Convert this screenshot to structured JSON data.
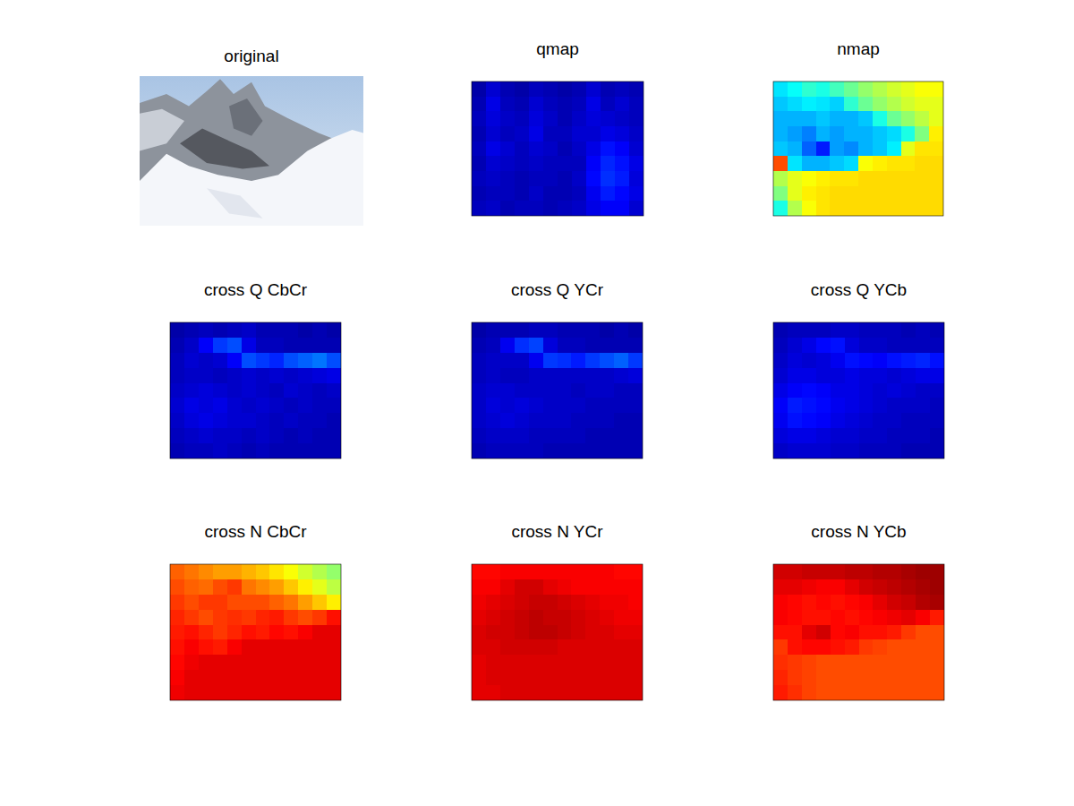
{
  "chart_data": [
    {
      "type": "image",
      "title": "original"
    },
    {
      "type": "heatmap",
      "title": "qmap",
      "color": "jet",
      "zlim": [
        0,
        1
      ],
      "tick_labels": false,
      "cells": [
        [
          0.04,
          0.08,
          0.05,
          0.04,
          0.06,
          0.05,
          0.04,
          0.05,
          0.08,
          0.05,
          0.06,
          0.05
        ],
        [
          0.05,
          0.1,
          0.06,
          0.05,
          0.08,
          0.06,
          0.05,
          0.06,
          0.1,
          0.06,
          0.08,
          0.06
        ],
        [
          0.06,
          0.09,
          0.07,
          0.06,
          0.09,
          0.07,
          0.05,
          0.07,
          0.09,
          0.08,
          0.07,
          0.06
        ],
        [
          0.05,
          0.08,
          0.06,
          0.07,
          0.1,
          0.06,
          0.06,
          0.08,
          0.08,
          0.1,
          0.09,
          0.07
        ],
        [
          0.06,
          0.1,
          0.08,
          0.06,
          0.08,
          0.07,
          0.05,
          0.07,
          0.1,
          0.14,
          0.12,
          0.08
        ],
        [
          0.05,
          0.08,
          0.07,
          0.06,
          0.07,
          0.06,
          0.06,
          0.06,
          0.12,
          0.16,
          0.14,
          0.1
        ],
        [
          0.06,
          0.07,
          0.06,
          0.05,
          0.06,
          0.06,
          0.05,
          0.07,
          0.13,
          0.17,
          0.15,
          0.09
        ],
        [
          0.05,
          0.06,
          0.06,
          0.05,
          0.07,
          0.05,
          0.05,
          0.06,
          0.11,
          0.15,
          0.13,
          0.1
        ],
        [
          0.06,
          0.07,
          0.05,
          0.06,
          0.06,
          0.05,
          0.06,
          0.07,
          0.1,
          0.12,
          0.12,
          0.08
        ]
      ]
    },
    {
      "type": "heatmap",
      "title": "nmap",
      "color": "jet",
      "zlim": [
        0,
        1
      ],
      "tick_labels": false,
      "cells": [
        [
          0.35,
          0.38,
          0.42,
          0.4,
          0.44,
          0.48,
          0.52,
          0.55,
          0.58,
          0.6,
          0.62,
          0.62
        ],
        [
          0.32,
          0.34,
          0.36,
          0.35,
          0.33,
          0.42,
          0.48,
          0.52,
          0.55,
          0.58,
          0.6,
          0.6
        ],
        [
          0.3,
          0.3,
          0.3,
          0.32,
          0.3,
          0.3,
          0.32,
          0.4,
          0.48,
          0.52,
          0.56,
          0.6
        ],
        [
          0.3,
          0.28,
          0.25,
          0.3,
          0.28,
          0.3,
          0.3,
          0.32,
          0.34,
          0.4,
          0.5,
          0.64
        ],
        [
          0.32,
          0.3,
          0.22,
          0.15,
          0.28,
          0.26,
          0.3,
          0.32,
          0.36,
          0.6,
          0.65,
          0.65
        ],
        [
          0.8,
          0.35,
          0.3,
          0.3,
          0.32,
          0.34,
          0.62,
          0.64,
          0.65,
          0.65,
          0.66,
          0.66
        ],
        [
          0.55,
          0.6,
          0.62,
          0.64,
          0.65,
          0.65,
          0.66,
          0.66,
          0.66,
          0.66,
          0.66,
          0.66
        ],
        [
          0.5,
          0.6,
          0.64,
          0.65,
          0.66,
          0.66,
          0.66,
          0.66,
          0.66,
          0.66,
          0.66,
          0.66
        ],
        [
          0.4,
          0.55,
          0.62,
          0.65,
          0.66,
          0.66,
          0.66,
          0.66,
          0.66,
          0.66,
          0.66,
          0.66
        ]
      ]
    },
    {
      "type": "heatmap",
      "title": "cross Q CbCr",
      "color": "jet",
      "zlim": [
        0,
        1
      ],
      "tick_labels": false,
      "cells": [
        [
          0.04,
          0.05,
          0.06,
          0.05,
          0.06,
          0.07,
          0.05,
          0.05,
          0.05,
          0.04,
          0.05,
          0.04
        ],
        [
          0.05,
          0.07,
          0.12,
          0.18,
          0.2,
          0.1,
          0.06,
          0.06,
          0.05,
          0.05,
          0.05,
          0.05
        ],
        [
          0.06,
          0.08,
          0.07,
          0.08,
          0.12,
          0.2,
          0.18,
          0.16,
          0.2,
          0.22,
          0.24,
          0.2
        ],
        [
          0.06,
          0.07,
          0.07,
          0.06,
          0.07,
          0.08,
          0.07,
          0.08,
          0.07,
          0.08,
          0.09,
          0.1
        ],
        [
          0.07,
          0.08,
          0.09,
          0.08,
          0.07,
          0.08,
          0.07,
          0.06,
          0.08,
          0.07,
          0.06,
          0.07
        ],
        [
          0.08,
          0.1,
          0.09,
          0.1,
          0.08,
          0.07,
          0.08,
          0.07,
          0.06,
          0.07,
          0.06,
          0.06
        ],
        [
          0.07,
          0.09,
          0.1,
          0.09,
          0.08,
          0.08,
          0.07,
          0.06,
          0.07,
          0.06,
          0.06,
          0.05
        ],
        [
          0.06,
          0.07,
          0.08,
          0.07,
          0.07,
          0.06,
          0.07,
          0.06,
          0.05,
          0.06,
          0.05,
          0.05
        ],
        [
          0.05,
          0.06,
          0.06,
          0.07,
          0.06,
          0.05,
          0.06,
          0.05,
          0.05,
          0.05,
          0.05,
          0.05
        ]
      ]
    },
    {
      "type": "heatmap",
      "title": "cross Q YCr",
      "color": "jet",
      "zlim": [
        0,
        1
      ],
      "tick_labels": false,
      "cells": [
        [
          0.04,
          0.05,
          0.05,
          0.05,
          0.06,
          0.06,
          0.05,
          0.05,
          0.05,
          0.04,
          0.05,
          0.04
        ],
        [
          0.05,
          0.06,
          0.11,
          0.17,
          0.19,
          0.09,
          0.06,
          0.06,
          0.05,
          0.05,
          0.05,
          0.05
        ],
        [
          0.06,
          0.07,
          0.07,
          0.07,
          0.11,
          0.18,
          0.17,
          0.15,
          0.18,
          0.2,
          0.22,
          0.18
        ],
        [
          0.06,
          0.07,
          0.06,
          0.06,
          0.07,
          0.07,
          0.07,
          0.07,
          0.07,
          0.07,
          0.08,
          0.09
        ],
        [
          0.07,
          0.08,
          0.08,
          0.07,
          0.07,
          0.07,
          0.07,
          0.06,
          0.07,
          0.07,
          0.06,
          0.06
        ],
        [
          0.07,
          0.09,
          0.08,
          0.09,
          0.08,
          0.07,
          0.07,
          0.07,
          0.06,
          0.06,
          0.06,
          0.06
        ],
        [
          0.07,
          0.08,
          0.09,
          0.08,
          0.07,
          0.07,
          0.07,
          0.06,
          0.06,
          0.06,
          0.05,
          0.05
        ],
        [
          0.06,
          0.07,
          0.07,
          0.07,
          0.06,
          0.06,
          0.06,
          0.06,
          0.05,
          0.05,
          0.05,
          0.05
        ],
        [
          0.05,
          0.06,
          0.06,
          0.06,
          0.06,
          0.05,
          0.05,
          0.05,
          0.05,
          0.05,
          0.05,
          0.05
        ]
      ]
    },
    {
      "type": "heatmap",
      "title": "cross Q YCb",
      "color": "jet",
      "zlim": [
        0,
        1
      ],
      "tick_labels": false,
      "cells": [
        [
          0.05,
          0.06,
          0.06,
          0.06,
          0.07,
          0.07,
          0.06,
          0.06,
          0.06,
          0.05,
          0.06,
          0.05
        ],
        [
          0.06,
          0.08,
          0.1,
          0.13,
          0.14,
          0.09,
          0.07,
          0.07,
          0.06,
          0.06,
          0.06,
          0.06
        ],
        [
          0.07,
          0.09,
          0.08,
          0.09,
          0.11,
          0.14,
          0.13,
          0.12,
          0.14,
          0.15,
          0.16,
          0.14
        ],
        [
          0.08,
          0.1,
          0.1,
          0.09,
          0.09,
          0.1,
          0.09,
          0.09,
          0.08,
          0.09,
          0.1,
          0.1
        ],
        [
          0.1,
          0.12,
          0.13,
          0.12,
          0.1,
          0.1,
          0.09,
          0.08,
          0.09,
          0.08,
          0.07,
          0.07
        ],
        [
          0.12,
          0.15,
          0.14,
          0.13,
          0.11,
          0.1,
          0.09,
          0.08,
          0.07,
          0.07,
          0.07,
          0.06
        ],
        [
          0.11,
          0.14,
          0.13,
          0.12,
          0.1,
          0.09,
          0.08,
          0.07,
          0.07,
          0.06,
          0.06,
          0.06
        ],
        [
          0.09,
          0.1,
          0.1,
          0.09,
          0.08,
          0.08,
          0.07,
          0.07,
          0.06,
          0.06,
          0.06,
          0.05
        ],
        [
          0.07,
          0.08,
          0.08,
          0.08,
          0.07,
          0.07,
          0.06,
          0.06,
          0.06,
          0.05,
          0.05,
          0.05
        ]
      ]
    },
    {
      "type": "heatmap",
      "title": "cross N CbCr",
      "color": "jet",
      "zlim": [
        0,
        1
      ],
      "tick_labels": false,
      "cells": [
        [
          0.78,
          0.76,
          0.74,
          0.72,
          0.72,
          0.7,
          0.68,
          0.65,
          0.62,
          0.58,
          0.55,
          0.52
        ],
        [
          0.8,
          0.78,
          0.77,
          0.8,
          0.82,
          0.76,
          0.74,
          0.72,
          0.68,
          0.64,
          0.6,
          0.56
        ],
        [
          0.82,
          0.8,
          0.82,
          0.82,
          0.8,
          0.8,
          0.8,
          0.78,
          0.76,
          0.72,
          0.68,
          0.64
        ],
        [
          0.84,
          0.82,
          0.8,
          0.82,
          0.83,
          0.82,
          0.84,
          0.85,
          0.82,
          0.8,
          0.82,
          0.86
        ],
        [
          0.85,
          0.86,
          0.84,
          0.82,
          0.84,
          0.86,
          0.85,
          0.87,
          0.86,
          0.88,
          0.9,
          0.9
        ],
        [
          0.86,
          0.88,
          0.86,
          0.85,
          0.88,
          0.9,
          0.9,
          0.9,
          0.9,
          0.9,
          0.9,
          0.9
        ],
        [
          0.87,
          0.89,
          0.9,
          0.9,
          0.9,
          0.9,
          0.9,
          0.9,
          0.9,
          0.9,
          0.9,
          0.9
        ],
        [
          0.88,
          0.9,
          0.9,
          0.9,
          0.9,
          0.9,
          0.9,
          0.9,
          0.9,
          0.9,
          0.9,
          0.9
        ],
        [
          0.89,
          0.9,
          0.9,
          0.9,
          0.9,
          0.9,
          0.9,
          0.9,
          0.9,
          0.9,
          0.9,
          0.9
        ]
      ]
    },
    {
      "type": "heatmap",
      "title": "cross N YCr",
      "color": "jet",
      "zlim": [
        0,
        1
      ],
      "tick_labels": false,
      "cells": [
        [
          0.87,
          0.87,
          0.88,
          0.88,
          0.88,
          0.88,
          0.88,
          0.88,
          0.88,
          0.88,
          0.87,
          0.87
        ],
        [
          0.88,
          0.88,
          0.9,
          0.92,
          0.92,
          0.9,
          0.89,
          0.88,
          0.88,
          0.88,
          0.88,
          0.88
        ],
        [
          0.89,
          0.9,
          0.91,
          0.92,
          0.93,
          0.93,
          0.92,
          0.91,
          0.9,
          0.89,
          0.89,
          0.88
        ],
        [
          0.9,
          0.91,
          0.92,
          0.93,
          0.94,
          0.93,
          0.93,
          0.92,
          0.91,
          0.9,
          0.89,
          0.89
        ],
        [
          0.91,
          0.92,
          0.92,
          0.93,
          0.94,
          0.94,
          0.93,
          0.92,
          0.91,
          0.91,
          0.9,
          0.9
        ],
        [
          0.91,
          0.91,
          0.92,
          0.92,
          0.92,
          0.92,
          0.91,
          0.91,
          0.91,
          0.91,
          0.91,
          0.91
        ],
        [
          0.9,
          0.91,
          0.91,
          0.91,
          0.91,
          0.91,
          0.91,
          0.91,
          0.91,
          0.91,
          0.91,
          0.91
        ],
        [
          0.9,
          0.91,
          0.91,
          0.91,
          0.91,
          0.91,
          0.91,
          0.91,
          0.91,
          0.91,
          0.91,
          0.91
        ],
        [
          0.9,
          0.9,
          0.91,
          0.91,
          0.91,
          0.91,
          0.91,
          0.91,
          0.91,
          0.91,
          0.91,
          0.91
        ]
      ]
    },
    {
      "type": "heatmap",
      "title": "cross N YCb",
      "color": "jet",
      "zlim": [
        0,
        1
      ],
      "tick_labels": false,
      "cells": [
        [
          0.92,
          0.92,
          0.93,
          0.93,
          0.93,
          0.94,
          0.94,
          0.95,
          0.95,
          0.96,
          0.97,
          0.97
        ],
        [
          0.9,
          0.9,
          0.89,
          0.88,
          0.88,
          0.9,
          0.92,
          0.93,
          0.94,
          0.95,
          0.96,
          0.97
        ],
        [
          0.88,
          0.87,
          0.86,
          0.87,
          0.86,
          0.87,
          0.88,
          0.9,
          0.92,
          0.93,
          0.95,
          0.96
        ],
        [
          0.88,
          0.87,
          0.86,
          0.86,
          0.87,
          0.86,
          0.87,
          0.88,
          0.89,
          0.9,
          0.88,
          0.85
        ],
        [
          0.86,
          0.86,
          0.9,
          0.92,
          0.87,
          0.88,
          0.86,
          0.86,
          0.85,
          0.82,
          0.8,
          0.8
        ],
        [
          0.82,
          0.86,
          0.87,
          0.87,
          0.86,
          0.85,
          0.82,
          0.81,
          0.8,
          0.8,
          0.8,
          0.8
        ],
        [
          0.83,
          0.82,
          0.81,
          0.8,
          0.8,
          0.8,
          0.8,
          0.8,
          0.8,
          0.8,
          0.8,
          0.8
        ],
        [
          0.84,
          0.82,
          0.81,
          0.8,
          0.8,
          0.8,
          0.8,
          0.8,
          0.8,
          0.8,
          0.8,
          0.8
        ],
        [
          0.85,
          0.83,
          0.81,
          0.8,
          0.8,
          0.8,
          0.8,
          0.8,
          0.8,
          0.8,
          0.8,
          0.8
        ]
      ]
    }
  ]
}
